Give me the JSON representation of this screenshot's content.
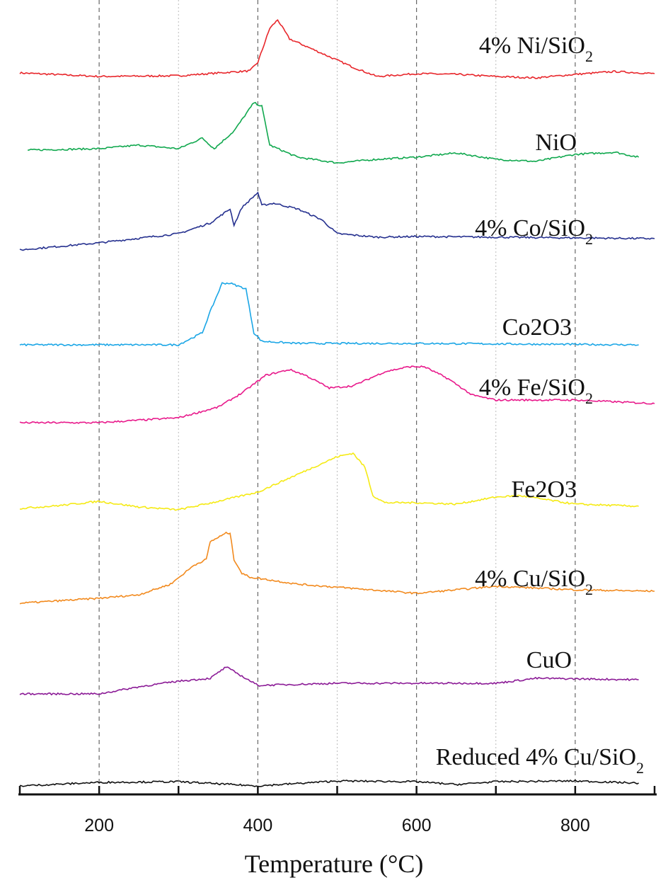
{
  "chart_data": {
    "type": "line",
    "title": "",
    "xlabel": "Temperature (°C)",
    "xlabel_main": "Temperature (",
    "xlabel_sup": "o",
    "xlabel_end": "C)",
    "ylabel": "",
    "xlim": [
      100,
      900
    ],
    "x_ticks": [
      200,
      400,
      600,
      800
    ],
    "x_tick_labels": [
      "200",
      "400",
      "600",
      "800"
    ],
    "minor_ticks": [
      300,
      500,
      700
    ],
    "grid": "vertical dashed lines at major ticks, dotted at minor ticks",
    "y_units": "stacked intensity (a.u.)",
    "series": [
      {
        "name": "4% Ni/SiO2",
        "label_main": "4% Ni/SiO",
        "label_sub": "2",
        "color": "#e8262b",
        "x": [
          100,
          200,
          300,
          390,
          400,
          415,
          425,
          440,
          480,
          520,
          550,
          600,
          650,
          700,
          750,
          800,
          850,
          900
        ],
        "y": [
          1027,
          1022,
          1023,
          1030,
          1042,
          1090,
          1102,
          1075,
          1055,
          1035,
          1022,
          1026,
          1025,
          1022,
          1020,
          1025,
          1029,
          1026
        ]
      },
      {
        "name": "NiO",
        "label_main": "NiO",
        "label_sub": "",
        "color": "#10a84e",
        "x": [
          110,
          200,
          250,
          300,
          330,
          345,
          370,
          395,
          405,
          415,
          450,
          500,
          550,
          600,
          650,
          700,
          750,
          800,
          850,
          880
        ],
        "y": [
          918,
          920,
          925,
          920,
          935,
          920,
          945,
          985,
          980,
          925,
          908,
          900,
          905,
          908,
          914,
          905,
          902,
          912,
          915,
          908
        ]
      },
      {
        "name": "4% Co/SiO2",
        "label_main": "4% Co/SiO",
        "label_sub": "2",
        "color": "#25308f",
        "x": [
          100,
          200,
          300,
          340,
          365,
          370,
          380,
          400,
          405,
          420,
          450,
          480,
          500,
          550,
          600,
          700,
          800,
          900
        ],
        "y": [
          777,
          787,
          800,
          815,
          835,
          812,
          837,
          858,
          840,
          843,
          835,
          820,
          800,
          795,
          796,
          795,
          794,
          793
        ]
      },
      {
        "name": "Co2O3",
        "label_main": "Co2O3",
        "label_sub": "",
        "color": "#1aa6e6",
        "x": [
          100,
          300,
          330,
          340,
          355,
          365,
          385,
          395,
          405,
          450,
          600,
          880
        ],
        "y": [
          643,
          643,
          660,
          690,
          730,
          730,
          722,
          660,
          648,
          645,
          645,
          643
        ]
      },
      {
        "name": "4% Fe/SiO2",
        "label_main": "4% Fe/SiO",
        "label_sub": "2",
        "color": "#e8198b",
        "x": [
          100,
          200,
          300,
          350,
          380,
          410,
          440,
          460,
          490,
          520,
          560,
          590,
          610,
          640,
          670,
          700,
          800,
          900
        ],
        "y": [
          533,
          533,
          540,
          555,
          575,
          600,
          608,
          600,
          582,
          585,
          605,
          612,
          612,
          595,
          572,
          565,
          565,
          560
        ]
      },
      {
        "name": "Fe2O3",
        "label_main": "Fe2O3",
        "label_sub": "",
        "color": "#f5ea14",
        "x": [
          100,
          150,
          200,
          250,
          300,
          350,
          400,
          450,
          500,
          520,
          535,
          545,
          560,
          600,
          650,
          700,
          730,
          800,
          880
        ],
        "y": [
          412,
          416,
          422,
          414,
          410,
          422,
          435,
          460,
          485,
          490,
          470,
          430,
          420,
          420,
          418,
          428,
          430,
          418,
          415
        ]
      },
      {
        "name": "4% Cu/SiO2",
        "label_main": "4% Cu/SiO",
        "label_sub": "2",
        "color": "#f28a1e",
        "x": [
          100,
          200,
          250,
          290,
          320,
          335,
          340,
          360,
          365,
          370,
          380,
          390,
          450,
          600,
          700,
          800,
          900
        ],
        "y": [
          278,
          285,
          290,
          305,
          332,
          340,
          365,
          377,
          377,
          340,
          320,
          315,
          305,
          292,
          302,
          297,
          295
        ]
      },
      {
        "name": "CuO",
        "label_main": "CuO",
        "label_sub": "",
        "color": "#8b1a96",
        "x": [
          100,
          200,
          250,
          300,
          340,
          360,
          380,
          400,
          500,
          600,
          700,
          750,
          880
        ],
        "y": [
          150,
          150,
          160,
          168,
          172,
          188,
          175,
          162,
          165,
          165,
          165,
          172,
          170
        ]
      },
      {
        "name": "Reduced 4% Cu/SiO2",
        "label_main": "Reduced 4% Cu/SiO",
        "label_sub": "2",
        "color": "#111111",
        "x": [
          100,
          200,
          300,
          400,
          500,
          600,
          650,
          700,
          800,
          880
        ],
        "y": [
          20,
          25,
          26,
          20,
          27,
          26,
          22,
          26,
          27,
          24
        ]
      }
    ]
  }
}
